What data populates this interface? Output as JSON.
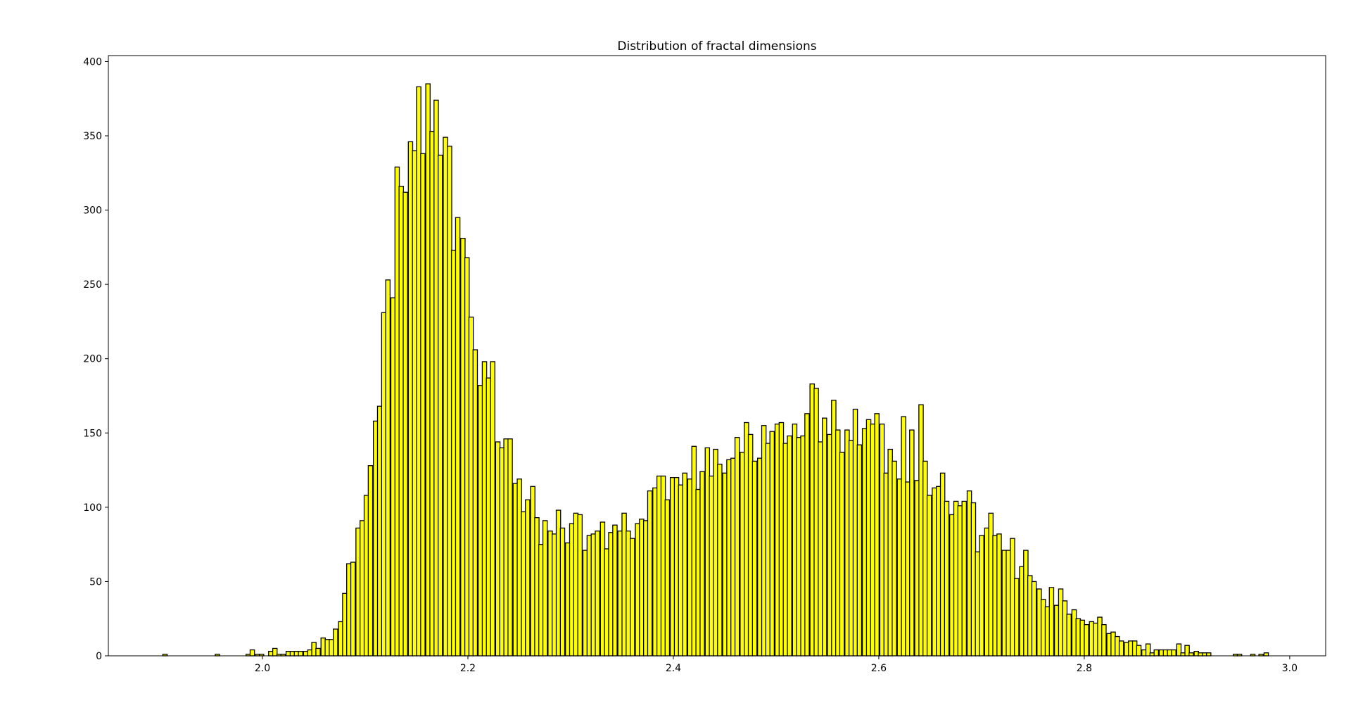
{
  "chart_data": {
    "type": "bar",
    "title": "Distribution of fractal dimensions",
    "xlabel": "",
    "ylabel": "",
    "xlim": [
      1.85,
      3.035
    ],
    "ylim": [
      0,
      404
    ],
    "xticks": [
      2.0,
      2.2,
      2.4,
      2.6,
      2.8,
      3.0
    ],
    "xtick_labels": [
      "2.0",
      "2.2",
      "2.4",
      "2.6",
      "2.8",
      "3.0"
    ],
    "yticks": [
      0,
      50,
      100,
      150,
      200,
      250,
      300,
      350,
      400
    ],
    "ytick_labels": [
      "0",
      "50",
      "100",
      "150",
      "200",
      "250",
      "300",
      "350",
      "400"
    ],
    "grid": false,
    "bar_color": "#ffff00",
    "edge_color": "#000000",
    "bin_width": 0.00425,
    "bins": [
      [
        1.903,
        1
      ],
      [
        1.954,
        1
      ],
      [
        1.984,
        1
      ],
      [
        1.988,
        4
      ],
      [
        1.993,
        1
      ],
      [
        1.997,
        1
      ],
      [
        2.006,
        3
      ],
      [
        2.01,
        5
      ],
      [
        2.014,
        1
      ],
      [
        2.018,
        1
      ],
      [
        2.023,
        3
      ],
      [
        2.027,
        3
      ],
      [
        2.031,
        3
      ],
      [
        2.035,
        3
      ],
      [
        2.04,
        3
      ],
      [
        2.044,
        4
      ],
      [
        2.048,
        9
      ],
      [
        2.052,
        5
      ],
      [
        2.057,
        12
      ],
      [
        2.061,
        11
      ],
      [
        2.065,
        11
      ],
      [
        2.069,
        18
      ],
      [
        2.074,
        23
      ],
      [
        2.078,
        42
      ],
      [
        2.082,
        62
      ],
      [
        2.086,
        63
      ],
      [
        2.091,
        86
      ],
      [
        2.095,
        91
      ],
      [
        2.099,
        108
      ],
      [
        2.103,
        128
      ],
      [
        2.108,
        158
      ],
      [
        2.112,
        168
      ],
      [
        2.116,
        231
      ],
      [
        2.12,
        253
      ],
      [
        2.125,
        241
      ],
      [
        2.129,
        329
      ],
      [
        2.133,
        316
      ],
      [
        2.137,
        312
      ],
      [
        2.142,
        346
      ],
      [
        2.146,
        340
      ],
      [
        2.15,
        383
      ],
      [
        2.154,
        338
      ],
      [
        2.159,
        385
      ],
      [
        2.163,
        353
      ],
      [
        2.167,
        374
      ],
      [
        2.171,
        337
      ],
      [
        2.176,
        349
      ],
      [
        2.18,
        343
      ],
      [
        2.184,
        273
      ],
      [
        2.188,
        295
      ],
      [
        2.193,
        281
      ],
      [
        2.197,
        268
      ],
      [
        2.201,
        228
      ],
      [
        2.205,
        206
      ],
      [
        2.21,
        182
      ],
      [
        2.214,
        198
      ],
      [
        2.218,
        187
      ],
      [
        2.222,
        198
      ],
      [
        2.227,
        144
      ],
      [
        2.231,
        140
      ],
      [
        2.235,
        146
      ],
      [
        2.239,
        146
      ],
      [
        2.244,
        116
      ],
      [
        2.248,
        119
      ],
      [
        2.252,
        97
      ],
      [
        2.256,
        105
      ],
      [
        2.261,
        114
      ],
      [
        2.265,
        93
      ],
      [
        2.269,
        75
      ],
      [
        2.273,
        91
      ],
      [
        2.278,
        84
      ],
      [
        2.282,
        82
      ],
      [
        2.286,
        98
      ],
      [
        2.29,
        86
      ],
      [
        2.295,
        76
      ],
      [
        2.299,
        89
      ],
      [
        2.303,
        96
      ],
      [
        2.307,
        95
      ],
      [
        2.312,
        71
      ],
      [
        2.316,
        81
      ],
      [
        2.32,
        82
      ],
      [
        2.324,
        84
      ],
      [
        2.329,
        90
      ],
      [
        2.333,
        72
      ],
      [
        2.337,
        83
      ],
      [
        2.341,
        88
      ],
      [
        2.346,
        84
      ],
      [
        2.35,
        96
      ],
      [
        2.354,
        84
      ],
      [
        2.358,
        79
      ],
      [
        2.363,
        89
      ],
      [
        2.367,
        92
      ],
      [
        2.371,
        91
      ],
      [
        2.375,
        111
      ],
      [
        2.38,
        113
      ],
      [
        2.384,
        121
      ],
      [
        2.388,
        121
      ],
      [
        2.392,
        105
      ],
      [
        2.397,
        120
      ],
      [
        2.401,
        120
      ],
      [
        2.405,
        115
      ],
      [
        2.409,
        123
      ],
      [
        2.414,
        119
      ],
      [
        2.418,
        141
      ],
      [
        2.422,
        112
      ],
      [
        2.426,
        124
      ],
      [
        2.431,
        140
      ],
      [
        2.435,
        121
      ],
      [
        2.439,
        139
      ],
      [
        2.443,
        129
      ],
      [
        2.448,
        123
      ],
      [
        2.452,
        132
      ],
      [
        2.456,
        133
      ],
      [
        2.46,
        147
      ],
      [
        2.465,
        137
      ],
      [
        2.469,
        157
      ],
      [
        2.473,
        149
      ],
      [
        2.477,
        131
      ],
      [
        2.482,
        133
      ],
      [
        2.486,
        155
      ],
      [
        2.49,
        143
      ],
      [
        2.494,
        151
      ],
      [
        2.499,
        156
      ],
      [
        2.503,
        157
      ],
      [
        2.507,
        143
      ],
      [
        2.511,
        148
      ],
      [
        2.516,
        156
      ],
      [
        2.52,
        147
      ],
      [
        2.524,
        148
      ],
      [
        2.528,
        163
      ],
      [
        2.533,
        183
      ],
      [
        2.537,
        180
      ],
      [
        2.541,
        144
      ],
      [
        2.545,
        160
      ],
      [
        2.55,
        149
      ],
      [
        2.554,
        172
      ],
      [
        2.558,
        152
      ],
      [
        2.562,
        137
      ],
      [
        2.567,
        152
      ],
      [
        2.571,
        145
      ],
      [
        2.575,
        166
      ],
      [
        2.579,
        142
      ],
      [
        2.584,
        153
      ],
      [
        2.588,
        159
      ],
      [
        2.592,
        156
      ],
      [
        2.596,
        163
      ],
      [
        2.601,
        156
      ],
      [
        2.605,
        123
      ],
      [
        2.609,
        139
      ],
      [
        2.613,
        131
      ],
      [
        2.618,
        119
      ],
      [
        2.622,
        161
      ],
      [
        2.626,
        117
      ],
      [
        2.63,
        152
      ],
      [
        2.635,
        118
      ],
      [
        2.639,
        169
      ],
      [
        2.643,
        131
      ],
      [
        2.647,
        108
      ],
      [
        2.652,
        113
      ],
      [
        2.656,
        114
      ],
      [
        2.66,
        123
      ],
      [
        2.664,
        104
      ],
      [
        2.669,
        95
      ],
      [
        2.673,
        104
      ],
      [
        2.677,
        101
      ],
      [
        2.681,
        104
      ],
      [
        2.686,
        111
      ],
      [
        2.69,
        103
      ],
      [
        2.694,
        70
      ],
      [
        2.698,
        81
      ],
      [
        2.703,
        86
      ],
      [
        2.707,
        96
      ],
      [
        2.711,
        81
      ],
      [
        2.715,
        82
      ],
      [
        2.72,
        71
      ],
      [
        2.724,
        71
      ],
      [
        2.728,
        79
      ],
      [
        2.732,
        52
      ],
      [
        2.737,
        60
      ],
      [
        2.741,
        71
      ],
      [
        2.745,
        54
      ],
      [
        2.749,
        50
      ],
      [
        2.754,
        45
      ],
      [
        2.758,
        38
      ],
      [
        2.762,
        33
      ],
      [
        2.766,
        46
      ],
      [
        2.771,
        34
      ],
      [
        2.775,
        45
      ],
      [
        2.779,
        37
      ],
      [
        2.783,
        28
      ],
      [
        2.788,
        31
      ],
      [
        2.792,
        25
      ],
      [
        2.796,
        24
      ],
      [
        2.8,
        21
      ],
      [
        2.805,
        23
      ],
      [
        2.809,
        22
      ],
      [
        2.813,
        26
      ],
      [
        2.817,
        21
      ],
      [
        2.822,
        15
      ],
      [
        2.826,
        16
      ],
      [
        2.83,
        13
      ],
      [
        2.834,
        10
      ],
      [
        2.839,
        9
      ],
      [
        2.843,
        10
      ],
      [
        2.847,
        10
      ],
      [
        2.851,
        7
      ],
      [
        2.856,
        4
      ],
      [
        2.86,
        8
      ],
      [
        2.864,
        2
      ],
      [
        2.868,
        4
      ],
      [
        2.873,
        4
      ],
      [
        2.877,
        4
      ],
      [
        2.881,
        4
      ],
      [
        2.885,
        4
      ],
      [
        2.89,
        8
      ],
      [
        2.894,
        2
      ],
      [
        2.898,
        7
      ],
      [
        2.902,
        2
      ],
      [
        2.907,
        3
      ],
      [
        2.911,
        2
      ],
      [
        2.915,
        2
      ],
      [
        2.919,
        2
      ],
      [
        2.945,
        1
      ],
      [
        2.949,
        1
      ],
      [
        2.962,
        1
      ],
      [
        2.97,
        1
      ],
      [
        2.975,
        2
      ]
    ]
  }
}
